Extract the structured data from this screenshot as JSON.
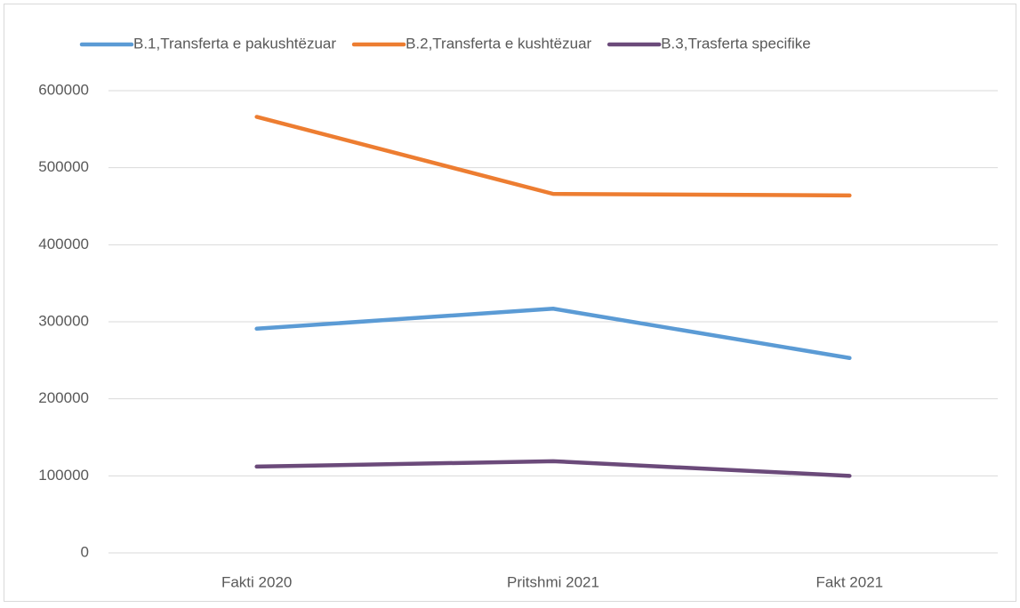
{
  "chart_data": {
    "type": "line",
    "categories": [
      "Fakti 2020",
      "Pritshmi 2021",
      "Fakt 2021"
    ],
    "series": [
      {
        "name": "B.1,Transferta e pakushtëzuar",
        "color": "#5b9bd5",
        "values": [
          291000,
          317000,
          253000
        ]
      },
      {
        "name": "B.2,Transferta e kushtëzuar",
        "color": "#ed7d31",
        "values": [
          566000,
          466000,
          464000
        ]
      },
      {
        "name": "B.3,Trasferta specifike",
        "color": "#6b4a7a",
        "values": [
          112000,
          119000,
          100000
        ]
      }
    ],
    "ylim": [
      0,
      600000
    ],
    "yticks": [
      0,
      100000,
      200000,
      300000,
      400000,
      500000,
      600000
    ],
    "grid": true,
    "legend": "top"
  }
}
